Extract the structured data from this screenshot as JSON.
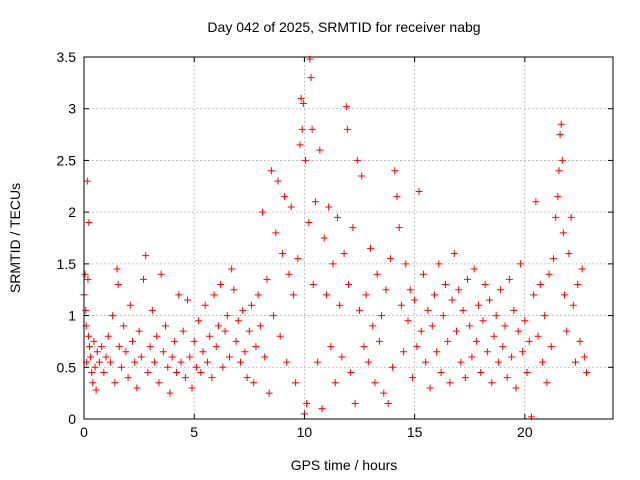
{
  "chart_data": {
    "type": "scatter",
    "title": "Day 042 of 2025, SRMTID for receiver nabg",
    "xlabel": "GPS time / hours",
    "ylabel": "SRMTID / TECUs",
    "xlim": [
      0,
      24
    ],
    "ylim": [
      0,
      3.5
    ],
    "xticks": [
      0,
      5,
      10,
      15,
      20
    ],
    "xtick_labels": [
      "0",
      "5",
      "10",
      "15",
      "20"
    ],
    "yticks": [
      0,
      0.5,
      1,
      1.5,
      2,
      2.5,
      3,
      3.5
    ],
    "ytick_labels": [
      "0",
      "0.5",
      "1",
      "1.5",
      "2",
      "2.5",
      "3",
      "3.5"
    ],
    "grid": true,
    "marker": "plus",
    "color": "#ff0000",
    "series": [
      {
        "points": [
          [
            0.0,
            1.2
          ],
          [
            0.05,
            1.4
          ],
          [
            0.08,
            1.05
          ],
          [
            0.1,
            0.9
          ],
          [
            0.12,
            0.55
          ],
          [
            0.15,
            2.3
          ],
          [
            0.18,
            1.35
          ],
          [
            0.2,
            0.8
          ],
          [
            0.22,
            1.9
          ],
          [
            0.25,
            0.7
          ],
          [
            0.3,
            0.6
          ],
          [
            0.35,
            0.45
          ],
          [
            0.4,
            0.35
          ],
          [
            0.45,
            0.75
          ],
          [
            0.5,
            0.5
          ],
          [
            0.55,
            0.28
          ],
          [
            0.6,
            0.65
          ],
          [
            0.7,
            0.55
          ],
          [
            0.8,
            0.7
          ],
          [
            0.9,
            0.45
          ],
          [
            1.0,
            0.6
          ],
          [
            1.1,
            0.8
          ],
          [
            1.2,
            0.55
          ],
          [
            1.3,
            1.0
          ],
          [
            1.4,
            0.35
          ],
          [
            1.5,
            1.45
          ],
          [
            1.55,
            1.3
          ],
          [
            1.6,
            0.7
          ],
          [
            1.7,
            0.5
          ],
          [
            1.8,
            0.9
          ],
          [
            1.9,
            0.65
          ],
          [
            2.0,
            0.4
          ],
          [
            2.1,
            1.1
          ],
          [
            2.2,
            0.75
          ],
          [
            2.3,
            0.55
          ],
          [
            2.4,
            0.3
          ],
          [
            2.5,
            0.85
          ],
          [
            2.6,
            0.6
          ],
          [
            2.7,
            1.35
          ],
          [
            2.8,
            1.58
          ],
          [
            2.9,
            0.45
          ],
          [
            3.0,
            0.7
          ],
          [
            3.1,
            1.05
          ],
          [
            3.2,
            0.55
          ],
          [
            3.3,
            0.8
          ],
          [
            3.4,
            0.35
          ],
          [
            3.5,
            1.4
          ],
          [
            3.6,
            0.65
          ],
          [
            3.7,
            0.9
          ],
          [
            3.8,
            0.5
          ],
          [
            3.9,
            0.25
          ],
          [
            4.0,
            0.6
          ],
          [
            4.1,
            0.75
          ],
          [
            4.2,
            0.45
          ],
          [
            4.3,
            1.2
          ],
          [
            4.4,
            0.55
          ],
          [
            4.5,
            0.85
          ],
          [
            4.6,
            0.4
          ],
          [
            4.7,
            1.15
          ],
          [
            4.8,
            0.6
          ],
          [
            4.9,
            0.3
          ],
          [
            5.0,
            0.75
          ],
          [
            5.1,
            0.5
          ],
          [
            5.2,
            0.95
          ],
          [
            5.3,
            0.45
          ],
          [
            5.4,
            0.65
          ],
          [
            5.5,
            1.1
          ],
          [
            5.6,
            0.55
          ],
          [
            5.7,
            0.8
          ],
          [
            5.8,
            0.4
          ],
          [
            5.9,
            1.2
          ],
          [
            6.0,
            0.7
          ],
          [
            6.1,
            0.9
          ],
          [
            6.2,
            1.3
          ],
          [
            6.3,
            0.5
          ],
          [
            6.4,
            0.85
          ],
          [
            6.5,
            1.0
          ],
          [
            6.6,
            0.6
          ],
          [
            6.7,
            1.45
          ],
          [
            6.8,
            1.25
          ],
          [
            6.9,
            0.75
          ],
          [
            7.0,
            0.95
          ],
          [
            7.1,
            0.55
          ],
          [
            7.2,
            1.05
          ],
          [
            7.3,
            0.65
          ],
          [
            7.4,
            0.4
          ],
          [
            7.5,
            0.85
          ],
          [
            7.6,
            1.1
          ],
          [
            7.7,
            0.35
          ],
          [
            7.8,
            0.7
          ],
          [
            7.9,
            1.2
          ],
          [
            8.0,
            0.9
          ],
          [
            8.1,
            2.0
          ],
          [
            8.2,
            0.6
          ],
          [
            8.3,
            1.35
          ],
          [
            8.4,
            0.25
          ],
          [
            8.5,
            2.4
          ],
          [
            8.6,
            1.0
          ],
          [
            8.7,
            1.8
          ],
          [
            8.8,
            2.3
          ],
          [
            8.9,
            0.8
          ],
          [
            9.0,
            1.6
          ],
          [
            9.1,
            2.15
          ],
          [
            9.2,
            0.55
          ],
          [
            9.3,
            1.4
          ],
          [
            9.4,
            2.05
          ],
          [
            9.5,
            1.2
          ],
          [
            9.6,
            0.35
          ],
          [
            9.7,
            1.55
          ],
          [
            9.8,
            2.65
          ],
          [
            9.85,
            3.1
          ],
          [
            9.9,
            2.8
          ],
          [
            9.95,
            3.05
          ],
          [
            10.0,
            0.05
          ],
          [
            10.05,
            2.5
          ],
          [
            10.1,
            0.15
          ],
          [
            10.2,
            1.9
          ],
          [
            10.25,
            3.48
          ],
          [
            10.3,
            3.3
          ],
          [
            10.35,
            2.8
          ],
          [
            10.4,
            1.3
          ],
          [
            10.5,
            2.1
          ],
          [
            10.6,
            0.55
          ],
          [
            10.7,
            2.6
          ],
          [
            10.8,
            0.1
          ],
          [
            10.9,
            1.75
          ],
          [
            11.0,
            1.2
          ],
          [
            11.1,
            2.05
          ],
          [
            11.2,
            0.7
          ],
          [
            11.3,
            1.5
          ],
          [
            11.4,
            0.35
          ],
          [
            11.5,
            1.95
          ],
          [
            11.6,
            1.1
          ],
          [
            11.7,
            0.6
          ],
          [
            11.8,
            1.6
          ],
          [
            11.9,
            3.02
          ],
          [
            11.95,
            2.8
          ],
          [
            12.0,
            1.3
          ],
          [
            12.1,
            0.45
          ],
          [
            12.2,
            1.85
          ],
          [
            12.3,
            0.15
          ],
          [
            12.4,
            2.5
          ],
          [
            12.5,
            1.05
          ],
          [
            12.6,
            2.35
          ],
          [
            12.7,
            0.7
          ],
          [
            12.8,
            1.2
          ],
          [
            12.9,
            0.55
          ],
          [
            13.0,
            1.65
          ],
          [
            13.1,
            0.9
          ],
          [
            13.2,
            0.35
          ],
          [
            13.3,
            1.4
          ],
          [
            13.4,
            0.75
          ],
          [
            13.5,
            1.0
          ],
          [
            13.6,
            0.25
          ],
          [
            13.7,
            1.25
          ],
          [
            13.8,
            0.15
          ],
          [
            13.9,
            1.55
          ],
          [
            14.0,
            0.5
          ],
          [
            14.1,
            2.4
          ],
          [
            14.2,
            2.15
          ],
          [
            14.3,
            1.85
          ],
          [
            14.4,
            1.1
          ],
          [
            14.5,
            0.65
          ],
          [
            14.6,
            1.5
          ],
          [
            14.7,
            0.95
          ],
          [
            14.8,
            1.25
          ],
          [
            14.9,
            0.4
          ],
          [
            15.0,
            1.15
          ],
          [
            15.1,
            0.7
          ],
          [
            15.2,
            2.2
          ],
          [
            15.3,
            0.85
          ],
          [
            15.4,
            1.4
          ],
          [
            15.5,
            0.55
          ],
          [
            15.6,
            1.05
          ],
          [
            15.7,
            0.3
          ],
          [
            15.8,
            0.9
          ],
          [
            15.9,
            1.2
          ],
          [
            16.0,
            0.65
          ],
          [
            16.1,
            1.5
          ],
          [
            16.2,
            0.45
          ],
          [
            16.3,
            1.0
          ],
          [
            16.4,
            1.3
          ],
          [
            16.5,
            0.75
          ],
          [
            16.6,
            0.35
          ],
          [
            16.7,
            1.15
          ],
          [
            16.8,
            1.6
          ],
          [
            16.9,
            0.85
          ],
          [
            17.0,
            1.25
          ],
          [
            17.1,
            0.55
          ],
          [
            17.2,
            1.05
          ],
          [
            17.3,
            0.4
          ],
          [
            17.4,
            1.35
          ],
          [
            17.5,
            0.9
          ],
          [
            17.6,
            0.6
          ],
          [
            17.7,
            1.45
          ],
          [
            17.8,
            0.75
          ],
          [
            17.9,
            1.1
          ],
          [
            18.0,
            0.45
          ],
          [
            18.1,
            0.95
          ],
          [
            18.2,
            1.3
          ],
          [
            18.3,
            0.65
          ],
          [
            18.4,
            1.15
          ],
          [
            18.5,
            0.35
          ],
          [
            18.6,
            0.8
          ],
          [
            18.7,
            1.0
          ],
          [
            18.8,
            0.55
          ],
          [
            18.9,
            1.25
          ],
          [
            19.0,
            0.7
          ],
          [
            19.1,
            0.9
          ],
          [
            19.2,
            0.4
          ],
          [
            19.3,
            1.35
          ],
          [
            19.4,
            0.6
          ],
          [
            19.5,
            1.05
          ],
          [
            19.6,
            0.3
          ],
          [
            19.7,
            0.85
          ],
          [
            19.8,
            1.5
          ],
          [
            19.9,
            0.65
          ],
          [
            20.0,
            0.95
          ],
          [
            20.1,
            0.45
          ],
          [
            20.2,
            0.75
          ],
          [
            20.3,
            0.02
          ],
          [
            20.4,
            1.2
          ],
          [
            20.5,
            2.1
          ],
          [
            20.6,
            0.8
          ],
          [
            20.7,
            1.3
          ],
          [
            20.8,
            0.55
          ],
          [
            20.9,
            1.0
          ],
          [
            21.0,
            0.35
          ],
          [
            21.1,
            1.4
          ],
          [
            21.2,
            0.7
          ],
          [
            21.3,
            1.55
          ],
          [
            21.4,
            1.95
          ],
          [
            21.5,
            2.15
          ],
          [
            21.55,
            2.4
          ],
          [
            21.6,
            2.75
          ],
          [
            21.65,
            2.85
          ],
          [
            21.7,
            2.5
          ],
          [
            21.75,
            1.8
          ],
          [
            21.8,
            1.2
          ],
          [
            21.9,
            0.85
          ],
          [
            22.0,
            1.6
          ],
          [
            22.1,
            1.95
          ],
          [
            22.2,
            1.1
          ],
          [
            22.3,
            0.55
          ],
          [
            22.4,
            1.3
          ],
          [
            22.5,
            0.75
          ],
          [
            22.6,
            1.45
          ],
          [
            22.7,
            0.6
          ],
          [
            22.8,
            0.45
          ]
        ]
      }
    ]
  }
}
